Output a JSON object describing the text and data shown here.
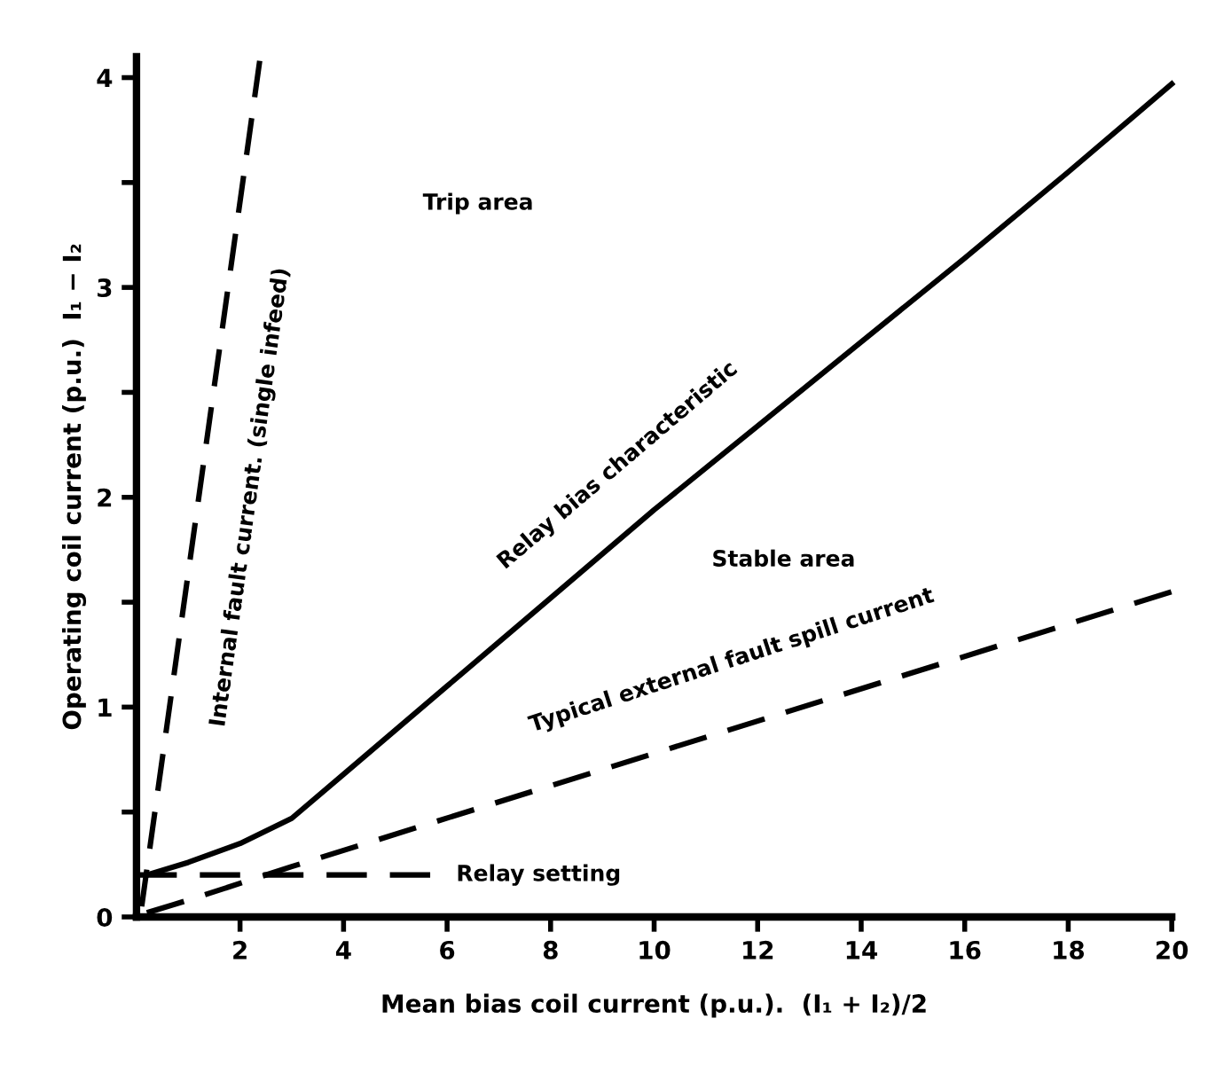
{
  "chart_data": {
    "type": "line",
    "xlabel": "Mean bias coil current (p.u.).  (I₁ + I₂)/2",
    "ylabel": "Operating coil current (p.u.)  I₁ − I₂",
    "series": [
      {
        "name": "Internal fault current. (single infeed)",
        "color": "#000000",
        "line_style": "dashed",
        "x": [
          0.1,
          2.38
        ],
        "values": [
          0.05,
          4.08
        ]
      },
      {
        "name": "Relay bias characteristic",
        "color": "#000000",
        "line_style": "solid",
        "x": [
          0.2,
          1,
          2,
          3,
          4,
          6,
          8,
          10,
          12,
          14,
          16,
          18,
          20
        ],
        "values": [
          0.2,
          0.26,
          0.35,
          0.47,
          0.68,
          1.1,
          1.52,
          1.94,
          2.34,
          2.74,
          3.14,
          3.55,
          3.97
        ]
      },
      {
        "name": "Typical external fault spill current",
        "color": "#000000",
        "line_style": "dashed",
        "x": [
          0.2,
          1,
          3,
          20
        ],
        "values": [
          0.02,
          0.08,
          0.24,
          1.55
        ]
      },
      {
        "name": "Relay setting",
        "color": "#000000",
        "line_style": "dashed",
        "x": [
          0,
          5.7
        ],
        "values": [
          0.2,
          0.2
        ]
      }
    ],
    "annotations": [
      "Trip area",
      "Stable area"
    ],
    "xlim": [
      0,
      20
    ],
    "ylim": [
      0,
      4.1
    ],
    "xticks": [
      2,
      4,
      6,
      8,
      10,
      12,
      14,
      16,
      18,
      20
    ],
    "yticks": [
      0,
      {
        "value": 0.5,
        "label": null
      },
      1,
      {
        "value": 1.5,
        "label": null
      },
      2,
      {
        "value": 2.5,
        "label": null
      },
      3,
      {
        "value": 3.5,
        "label": null
      },
      4
    ],
    "grid": false,
    "legend": false
  }
}
